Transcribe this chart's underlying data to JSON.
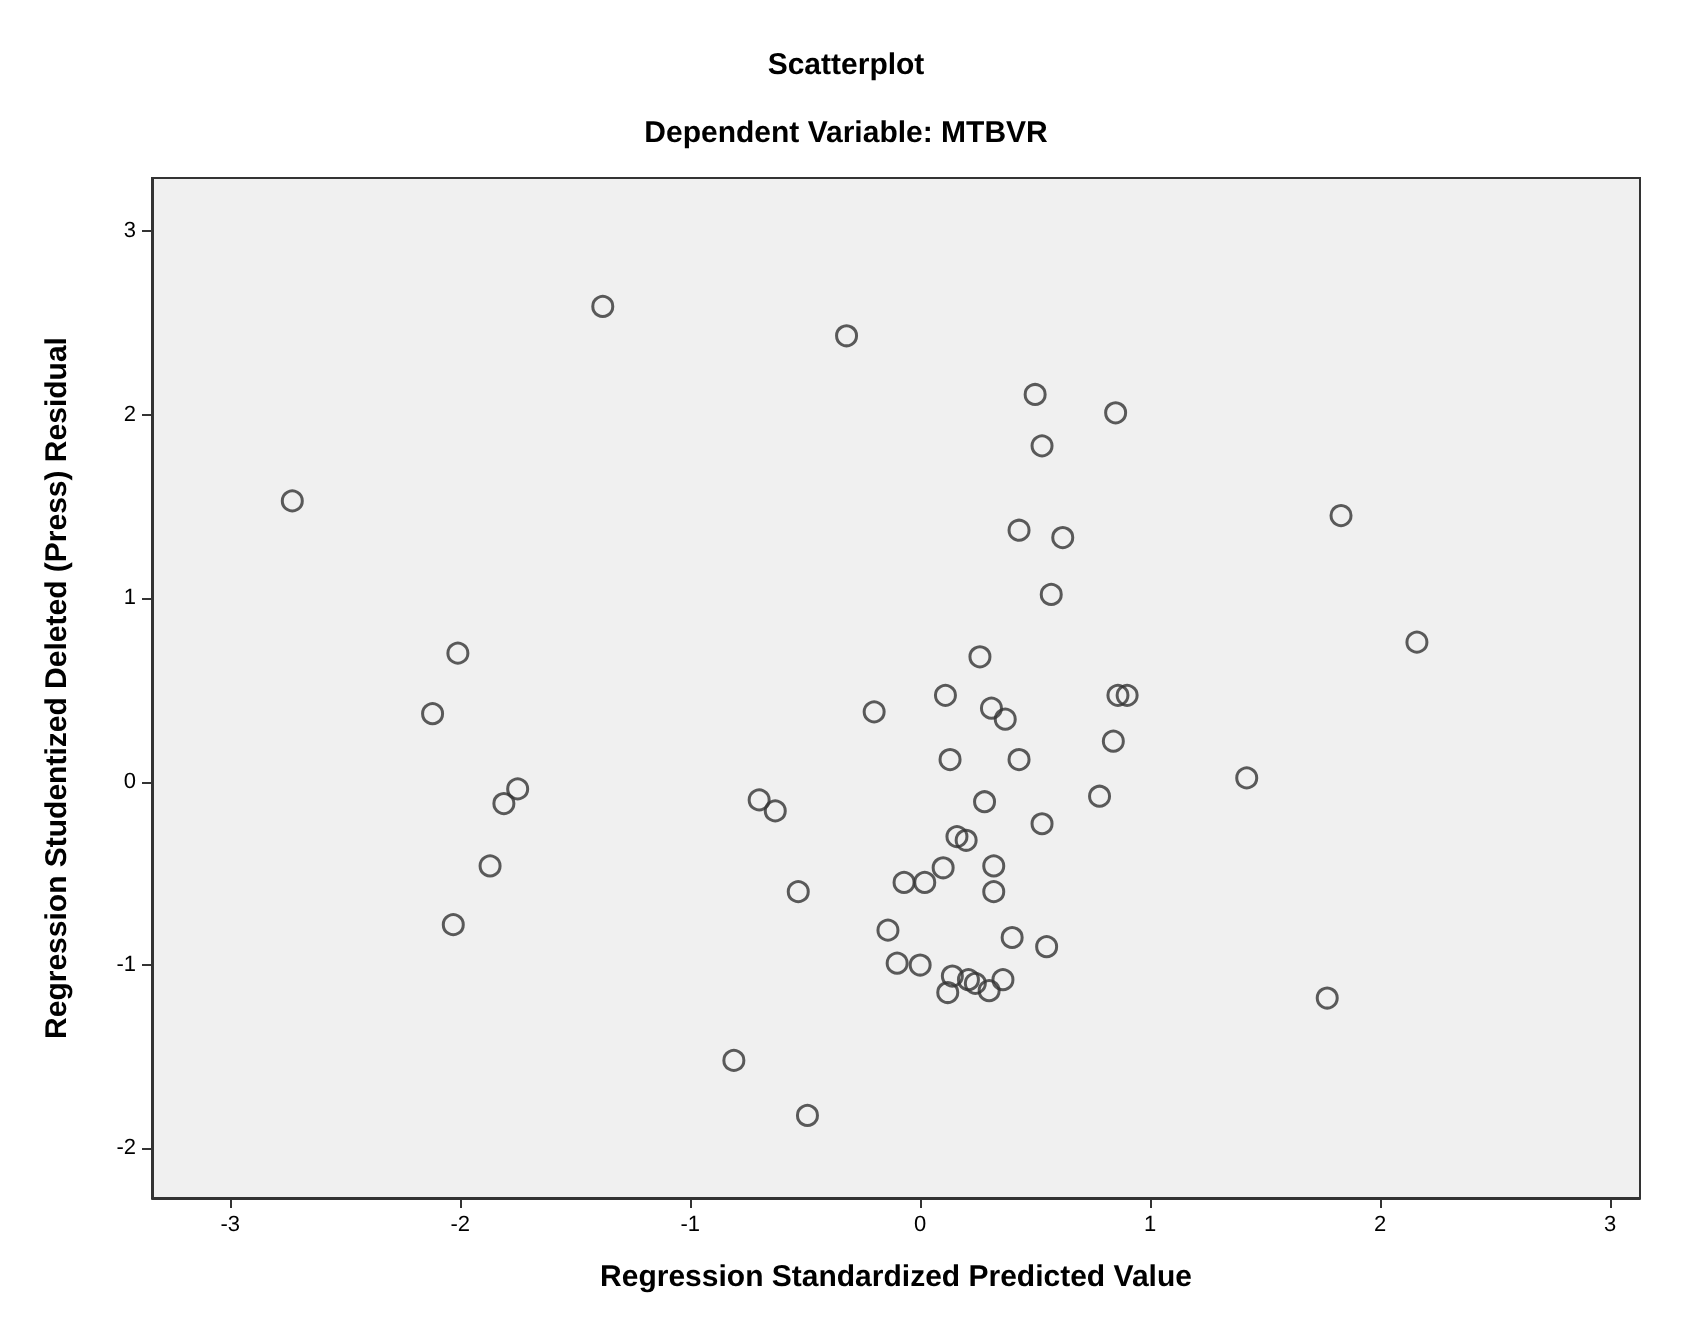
{
  "chart_data": {
    "type": "scatter",
    "title": "Scatterplot",
    "subtitle": "Dependent Variable: MTBVR",
    "xlabel": "Regression Standardized Predicted Value",
    "ylabel": "Regression Studentized Deleted (Press) Residual",
    "x": [
      -1.38,
      -0.32,
      -2.73,
      -2.01,
      -2.12,
      -0.2,
      0.5,
      0.85,
      0.53,
      0.43,
      0.62,
      0.57,
      1.83,
      2.16,
      0.26,
      0.11,
      0.86,
      0.9,
      0.31,
      0.37,
      0.84,
      0.13,
      0.43,
      1.42,
      0.28,
      0.78,
      0.53,
      0.16,
      0.2,
      0.1,
      0.32,
      -0.07,
      0.02,
      0.32,
      -0.14,
      0.4,
      0.55,
      -0.1,
      0.0,
      0.14,
      0.21,
      0.24,
      0.36,
      0.12,
      0.3,
      1.77,
      -1.75,
      -1.81,
      -1.87,
      -2.03,
      -0.7,
      -0.63,
      -0.53,
      -0.81,
      -0.49
    ],
    "series": [
      {
        "color": "#333333",
        "values": [
          2.59,
          2.43,
          1.53,
          0.7,
          0.37,
          0.38,
          2.11,
          2.01,
          1.83,
          1.37,
          1.33,
          1.02,
          1.45,
          0.76,
          0.68,
          0.47,
          0.47,
          0.47,
          0.4,
          0.34,
          0.22,
          0.12,
          0.12,
          0.02,
          -0.11,
          -0.08,
          -0.23,
          -0.3,
          -0.32,
          -0.47,
          -0.46,
          -0.55,
          -0.55,
          -0.6,
          -0.81,
          -0.85,
          -0.9,
          -0.99,
          -1.0,
          -1.06,
          -1.08,
          -1.1,
          -1.08,
          -1.15,
          -1.14,
          -1.18,
          -0.04,
          -0.12,
          -0.46,
          -0.78,
          -0.1,
          -0.16,
          -0.6,
          -1.52,
          -1.82
        ]
      }
    ],
    "xlim": [
      -3.34,
      3.13
    ],
    "xticks": [
      -3,
      -2,
      -1,
      0,
      1,
      2,
      3
    ],
    "ylim": [
      -2.27,
      3.29
    ],
    "yticks": [
      -2,
      -1,
      0,
      1,
      2,
      3
    ],
    "grid": false,
    "marker": "circle"
  }
}
